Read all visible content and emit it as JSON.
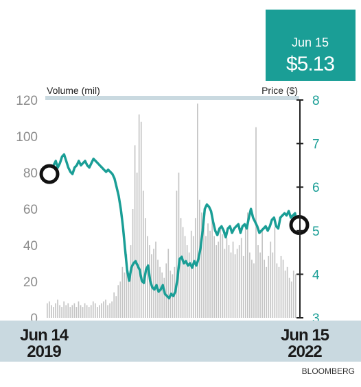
{
  "chart_data": {
    "type": "bar+line",
    "x_start": "Jun 14 2019",
    "x_end": "Jun 15 2022",
    "left_axis": {
      "title": "Volume (mil)",
      "range": [
        0,
        120
      ],
      "ticks": [
        "0",
        "20",
        "40",
        "60",
        "80",
        "100",
        "120"
      ]
    },
    "right_axis": {
      "title": "Price ($)",
      "range": [
        3,
        8
      ],
      "ticks": [
        "3",
        "4",
        "5",
        "6",
        "7",
        "8"
      ]
    },
    "x_labels": [
      {
        "line1": "Jun 14",
        "line2": "2019"
      },
      {
        "line1": "Jun 15",
        "line2": "2022"
      }
    ],
    "callout": {
      "date": "Jun 15",
      "price": "$5.13"
    },
    "source": "BLOOMBERG",
    "colors": {
      "price_line": "#1a9e96",
      "volume_bars": "#c4c4c4",
      "callout_bg": "#1a9e96",
      "date_band": "#c9d9e0",
      "axis": "#222222"
    },
    "series": [
      {
        "name": "Price ($)",
        "type": "line",
        "values": [
          6.3,
          6.35,
          6.5,
          6.6,
          6.45,
          6.55,
          6.7,
          6.75,
          6.6,
          6.45,
          6.35,
          6.3,
          6.45,
          6.5,
          6.6,
          6.5,
          6.55,
          6.6,
          6.5,
          6.45,
          6.55,
          6.65,
          6.6,
          6.55,
          6.5,
          6.45,
          6.4,
          6.35,
          6.4,
          6.35,
          6.3,
          6.2,
          6.0,
          5.8,
          5.5,
          5.1,
          4.6,
          4.1,
          3.85,
          4.15,
          4.25,
          4.3,
          4.2,
          4.1,
          3.85,
          3.8,
          4.1,
          4.2,
          3.85,
          3.7,
          3.65,
          3.75,
          3.6,
          3.65,
          3.75,
          3.55,
          3.5,
          3.45,
          3.55,
          3.5,
          3.6,
          3.9,
          4.35,
          4.4,
          4.25,
          4.3,
          4.2,
          4.25,
          4.15,
          4.3,
          4.2,
          4.35,
          4.6,
          5.0,
          5.5,
          5.6,
          5.55,
          5.45,
          5.2,
          5.0,
          4.9,
          5.05,
          5.1,
          5.0,
          4.85,
          5.05,
          5.1,
          4.95,
          5.05,
          5.1,
          5.15,
          4.95,
          5.1,
          5.15,
          5.05,
          5.3,
          5.5,
          5.3,
          5.2,
          5.1,
          4.95,
          5.0,
          5.05,
          5.1,
          5.0,
          5.1,
          5.25,
          5.3,
          5.1,
          5.05,
          5.3,
          5.35,
          5.4,
          5.35,
          5.45,
          5.3,
          5.35,
          5.4,
          5.1,
          5.13
        ]
      },
      {
        "name": "Volume (mil)",
        "type": "bar",
        "values": [
          8,
          9,
          7,
          6,
          8,
          10,
          7,
          6,
          9,
          7,
          8,
          6,
          7,
          8,
          6,
          9,
          7,
          6,
          8,
          7,
          6,
          7,
          9,
          8,
          6,
          7,
          8,
          9,
          10,
          7,
          8,
          9,
          14,
          12,
          18,
          20,
          28,
          25,
          35,
          22,
          40,
          60,
          95,
          80,
          112,
          108,
          70,
          55,
          45,
          40,
          35,
          38,
          42,
          32,
          28,
          25,
          22,
          30,
          38,
          26,
          24,
          28,
          70,
          80,
          55,
          50,
          45,
          40,
          36,
          48,
          45,
          55,
          118,
          65,
          58,
          50,
          45,
          52,
          48,
          55,
          45,
          40,
          42,
          50,
          46,
          38,
          44,
          40,
          36,
          42,
          35,
          38,
          40,
          44,
          34,
          50,
          58,
          36,
          32,
          30,
          105,
          40,
          36,
          48,
          32,
          28,
          34,
          42,
          36,
          50,
          30,
          28,
          34,
          32,
          26,
          28,
          22,
          20,
          26,
          24
        ]
      }
    ]
  }
}
